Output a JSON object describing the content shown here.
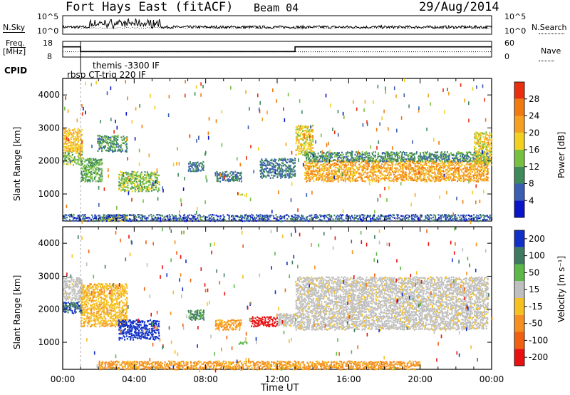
{
  "header": {
    "station": "Fort Hays East (fitACF)",
    "beam": "Beam 04",
    "date": "29/Aug/2014"
  },
  "status_panels": {
    "nsky_label": "N.Sky",
    "nsearch_label": "N.Search",
    "nsky_ticks": [
      "10^5",
      "10^0"
    ],
    "nsearch_ticks": [
      "10^5",
      "10^0"
    ],
    "freq_label_1": "Freq.",
    "freq_label_2": "[MHz]",
    "freq_ticks": [
      "18",
      "8"
    ],
    "nave_label": "Nave",
    "nave_ticks": [
      "60",
      "0"
    ],
    "cpid_label": "CPID",
    "cpid_entries": [
      "themis -3300 IF",
      "rbsp CT-trig 220 IF"
    ],
    "freq_steps_mhz": [
      {
        "t0": 0.0,
        "t1": 1.0,
        "f": 14.5
      },
      {
        "t0": 1.0,
        "t1": 13.0,
        "f": 11.5
      },
      {
        "t0": 13.0,
        "t1": 24.0,
        "f": 14.5
      }
    ],
    "nave_level": 20
  },
  "axes": {
    "x_label": "Time UT",
    "x_ticks": [
      "00:00",
      "04:00",
      "08:00",
      "12:00",
      "16:00",
      "20:00",
      "00:00"
    ],
    "y_label": "Slant Range [km]",
    "y_ticks": [
      "1000",
      "2000",
      "3000",
      "4000"
    ]
  },
  "power_scale": {
    "label": "Power [dB]",
    "ticks": [
      "4",
      "8",
      "12",
      "16",
      "20",
      "24",
      "28"
    ],
    "colors": [
      "#0a14c8",
      "#3a5fb0",
      "#3f8a5a",
      "#78c040",
      "#f2d020",
      "#f5a020",
      "#f07a10",
      "#e83010"
    ]
  },
  "velocity_scale": {
    "label": "Velocity [m s⁻¹]",
    "ticks": [
      "200",
      "100",
      "50",
      "15",
      "-15",
      "-50",
      "-100",
      "-200"
    ],
    "colors": [
      "#1030c8",
      "#3f7a60",
      "#5cb848",
      "#bfbfbf",
      "#f5c020",
      "#f59020",
      "#f06010",
      "#e81010"
    ]
  },
  "chart_data": [
    {
      "type": "heatmap",
      "title": "Power [dB]",
      "xlabel": "Time UT",
      "ylabel": "Slant Range [km]",
      "x_range_hours": [
        0,
        24
      ],
      "y_range_km": [
        180,
        4500
      ],
      "colorbar_range": [
        0,
        30
      ],
      "regions": [
        {
          "t0": 0.0,
          "t1": 1.1,
          "r0": 2300,
          "r1": 3000,
          "level": 20
        },
        {
          "t0": 0.0,
          "t1": 1.1,
          "r0": 1900,
          "r1": 2300,
          "level": 14
        },
        {
          "t0": 1.0,
          "t1": 2.2,
          "r0": 1400,
          "r1": 2100,
          "level": 12
        },
        {
          "t0": 1.9,
          "t1": 3.6,
          "r0": 2300,
          "r1": 2800,
          "level": 10
        },
        {
          "t0": 3.1,
          "t1": 5.4,
          "r0": 1100,
          "r1": 1700,
          "level": 14
        },
        {
          "t0": 2.0,
          "t1": 3.6,
          "r0": 200,
          "r1": 400,
          "level": 16
        },
        {
          "t0": 7.0,
          "t1": 7.9,
          "r0": 1700,
          "r1": 2000,
          "level": 8
        },
        {
          "t0": 8.5,
          "t1": 10.0,
          "r0": 1400,
          "r1": 1700,
          "level": 8
        },
        {
          "t0": 9.8,
          "t1": 10.3,
          "r0": 950,
          "r1": 1050,
          "level": 16
        },
        {
          "t0": 11.0,
          "t1": 13.0,
          "r0": 1500,
          "r1": 2100,
          "level": 8
        },
        {
          "t0": 13.0,
          "t1": 14.0,
          "r0": 2200,
          "r1": 3100,
          "level": 18
        },
        {
          "t0": 13.5,
          "t1": 23.8,
          "r0": 1400,
          "r1": 2050,
          "level": 22
        },
        {
          "t0": 13.5,
          "t1": 23.8,
          "r0": 2000,
          "r1": 2300,
          "level": 10
        },
        {
          "t0": 23.0,
          "t1": 24.0,
          "r0": 1900,
          "r1": 2900,
          "level": 18
        },
        {
          "t0": 0.0,
          "t1": 24.0,
          "r0": 200,
          "r1": 400,
          "level": 6
        }
      ]
    },
    {
      "type": "heatmap",
      "title": "Velocity [m s⁻¹]",
      "xlabel": "Time UT",
      "ylabel": "Slant Range [km]",
      "x_range_hours": [
        0,
        24
      ],
      "y_range_km": [
        180,
        4500
      ],
      "colorbar_range": [
        -200,
        200
      ],
      "regions": [
        {
          "t0": 0.0,
          "t1": 1.1,
          "r0": 2300,
          "r1": 3000,
          "level": 0
        },
        {
          "t0": 0.0,
          "t1": 1.1,
          "r0": 1900,
          "r1": 2250,
          "level": 150
        },
        {
          "t0": 1.0,
          "t1": 3.6,
          "r0": 1500,
          "r1": 2800,
          "level": -40
        },
        {
          "t0": 3.1,
          "t1": 5.4,
          "r0": 1100,
          "r1": 1700,
          "level": 180
        },
        {
          "t0": 7.0,
          "t1": 7.9,
          "r0": 1700,
          "r1": 2000,
          "level": 80
        },
        {
          "t0": 8.5,
          "t1": 10.0,
          "r0": 1400,
          "r1": 1700,
          "level": -60
        },
        {
          "t0": 9.8,
          "t1": 10.3,
          "r0": 950,
          "r1": 1050,
          "level": 40
        },
        {
          "t0": 10.5,
          "t1": 12.0,
          "r0": 1500,
          "r1": 1800,
          "level": -180
        },
        {
          "t0": 12.0,
          "t1": 13.0,
          "r0": 1500,
          "r1": 1900,
          "level": 0
        },
        {
          "t0": 13.0,
          "t1": 23.8,
          "r0": 1400,
          "r1": 3000,
          "level": 0
        },
        {
          "t0": 2.0,
          "t1": 20.0,
          "r0": 200,
          "r1": 450,
          "level": -60
        }
      ]
    }
  ]
}
